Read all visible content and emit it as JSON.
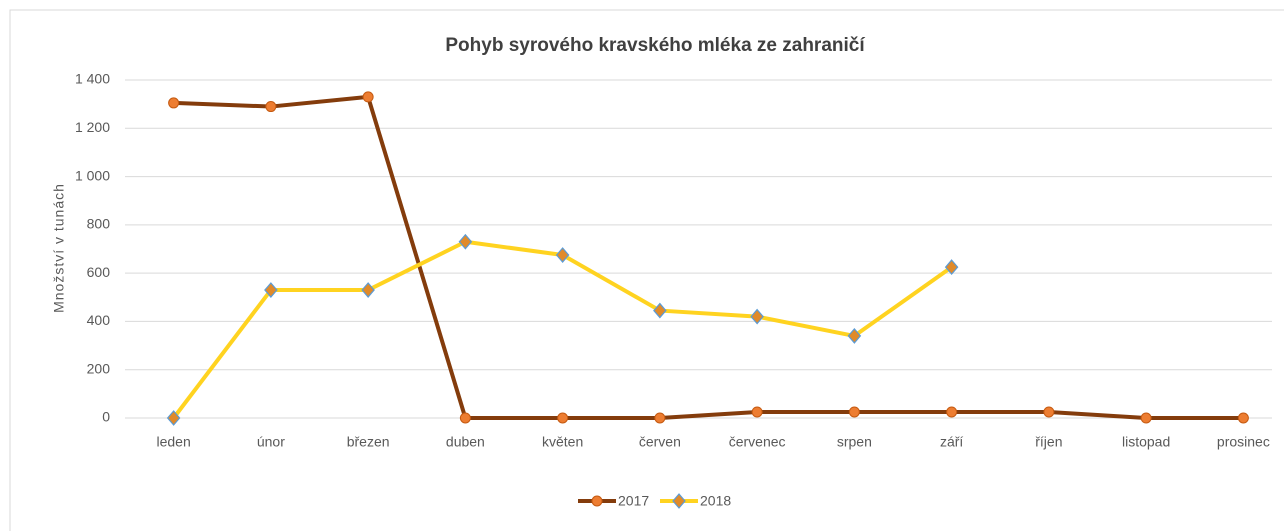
{
  "chart_data": {
    "type": "line",
    "title": "Pohyb syrového kravského mléka ze zahraničí",
    "y_label": "Množství v tunách",
    "categories": [
      "leden",
      "únor",
      "březen",
      "duben",
      "květen",
      "červen",
      "červenec",
      "srpen",
      "září",
      "říjen",
      "listopad",
      "prosinec"
    ],
    "series": [
      {
        "name": "2017",
        "color": "#843c0c",
        "marker": "circle",
        "marker_color": "#ed7d31",
        "values": [
          1305,
          1290,
          1330,
          0,
          0,
          0,
          25,
          25,
          25,
          25,
          0,
          0
        ]
      },
      {
        "name": "2018",
        "color": "#ffd320",
        "marker": "diamond",
        "marker_color": "#e08a2a",
        "values": [
          0,
          530,
          530,
          730,
          675,
          445,
          420,
          340,
          625,
          null,
          null,
          null
        ]
      }
    ],
    "ylim": [
      0,
      1400
    ],
    "yticks": [
      0,
      200,
      400,
      600,
      800,
      {
        "value": 1000,
        "label": "1 000"
      },
      {
        "value": 1200,
        "label": "1 200"
      },
      {
        "value": 1400,
        "label": "1 400"
      }
    ],
    "grid": true,
    "legend": "bottom"
  }
}
